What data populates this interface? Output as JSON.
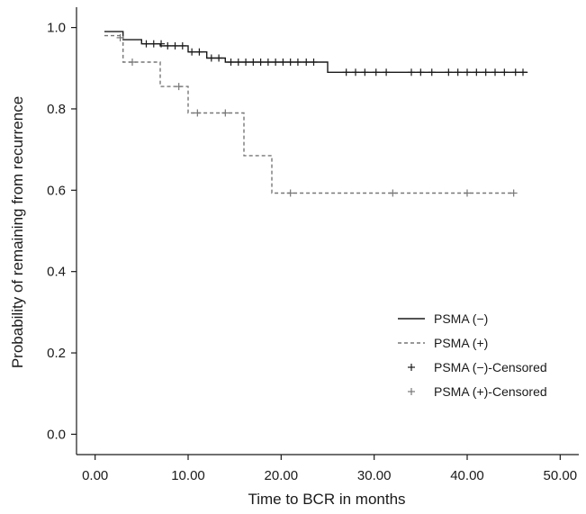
{
  "chart_data": {
    "type": "line",
    "title": "",
    "xlabel": "Time to BCR in months",
    "ylabel": "Probability of remaining from recurrence",
    "xlim": [
      -2,
      52
    ],
    "ylim": [
      -0.05,
      1.05
    ],
    "x_ticks": [
      0,
      10,
      20,
      30,
      40,
      50
    ],
    "x_tick_labels": [
      "0.00",
      "10.00",
      "20.00",
      "30.00",
      "40.00",
      "50.00"
    ],
    "y_ticks": [
      0.0,
      0.2,
      0.4,
      0.6,
      0.8,
      1.0
    ],
    "y_tick_labels": [
      "0.0",
      "0.2",
      "0.4",
      "0.6",
      "0.8",
      "1.0"
    ],
    "grid": false,
    "legend_position": "bottom-right",
    "series": [
      {
        "name": "PSMA (−)",
        "style": "solid",
        "color": "#1a1a1a",
        "steps": [
          [
            1,
            0.99
          ],
          [
            3,
            0.97
          ],
          [
            5,
            0.96
          ],
          [
            7,
            0.955
          ],
          [
            10,
            0.94
          ],
          [
            12,
            0.925
          ],
          [
            14,
            0.915
          ],
          [
            25,
            0.89
          ],
          [
            46.5,
            0.89
          ]
        ],
        "censored_name": "PSMA (−)-Censored",
        "censored": [
          [
            5.5,
            0.96
          ],
          [
            6.3,
            0.96
          ],
          [
            7.1,
            0.96
          ],
          [
            7.8,
            0.955
          ],
          [
            8.6,
            0.955
          ],
          [
            9.4,
            0.955
          ],
          [
            10.4,
            0.94
          ],
          [
            11.2,
            0.94
          ],
          [
            12.5,
            0.925
          ],
          [
            13.3,
            0.925
          ],
          [
            14.6,
            0.915
          ],
          [
            15.4,
            0.915
          ],
          [
            16.2,
            0.915
          ],
          [
            17,
            0.915
          ],
          [
            17.8,
            0.915
          ],
          [
            18.6,
            0.915
          ],
          [
            19.4,
            0.915
          ],
          [
            20.2,
            0.915
          ],
          [
            21,
            0.915
          ],
          [
            21.8,
            0.915
          ],
          [
            22.7,
            0.915
          ],
          [
            23.5,
            0.915
          ],
          [
            27,
            0.89
          ],
          [
            28,
            0.89
          ],
          [
            29,
            0.89
          ],
          [
            30.2,
            0.89
          ],
          [
            31.3,
            0.89
          ],
          [
            34,
            0.89
          ],
          [
            35,
            0.89
          ],
          [
            36.2,
            0.89
          ],
          [
            38,
            0.89
          ],
          [
            39,
            0.89
          ],
          [
            40,
            0.89
          ],
          [
            41,
            0.89
          ],
          [
            42,
            0.89
          ],
          [
            43,
            0.89
          ],
          [
            44,
            0.89
          ],
          [
            45.2,
            0.89
          ],
          [
            46,
            0.89
          ]
        ]
      },
      {
        "name": "PSMA (+)",
        "style": "dashed",
        "color": "#777777",
        "steps": [
          [
            1,
            0.98
          ],
          [
            3,
            0.915
          ],
          [
            7,
            0.855
          ],
          [
            10,
            0.79
          ],
          [
            16,
            0.685
          ],
          [
            19,
            0.593
          ],
          [
            45,
            0.593
          ]
        ],
        "censored_name": "PSMA (+)-Censored",
        "censored": [
          [
            2.7,
            0.975
          ],
          [
            4,
            0.915
          ],
          [
            9,
            0.855
          ],
          [
            11,
            0.79
          ],
          [
            14,
            0.79
          ],
          [
            21,
            0.593
          ],
          [
            32,
            0.593
          ],
          [
            40,
            0.593
          ],
          [
            45,
            0.593
          ]
        ]
      }
    ]
  }
}
